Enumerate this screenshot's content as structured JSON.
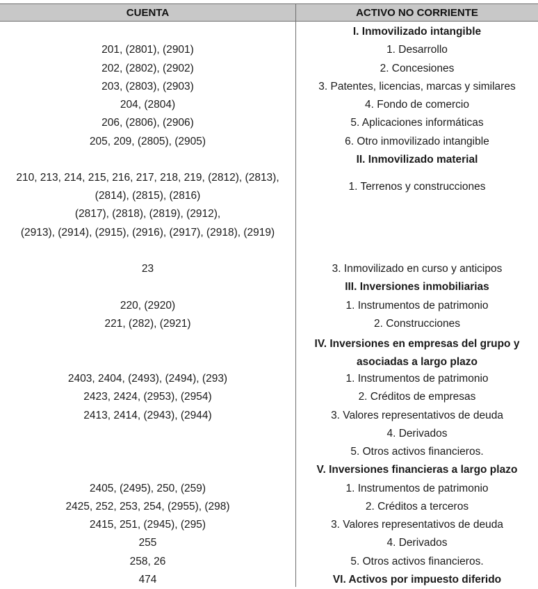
{
  "header": {
    "cuenta": "CUENTA",
    "activo": "ACTIVO NO CORRIENTE"
  },
  "rows": [
    {
      "cuenta": "",
      "activo": "I. Inmovilizado intangible"
    },
    {
      "cuenta": "201, (2801), (2901)",
      "activo": "1. Desarrollo"
    },
    {
      "cuenta": "202, (2802), (2902)",
      "activo": "2. Concesiones"
    },
    {
      "cuenta": "203, (2803), (2903)",
      "activo": "3. Patentes, licencias, marcas y similares"
    },
    {
      "cuenta": "204, (2804)",
      "activo": "4. Fondo de comercio"
    },
    {
      "cuenta": "206, (2806), (2906)",
      "activo": "5. Aplicaciones informáticas"
    },
    {
      "cuenta": "205, 209, (2805), (2905)",
      "activo": "6. Otro inmovilizado intangible"
    },
    {
      "cuenta": "",
      "activo": "II. Inmovilizado material"
    },
    {
      "cuenta": "210, 213, 214, 215, 216, 217, 218, 219, (2812), (2813), (2814), (2815), (2816)",
      "activo": "1. Terrenos y construcciones"
    },
    {
      "cuenta": "(2817), (2818), (2819), (2912),",
      "activo": ""
    },
    {
      "cuenta": "(2913), (2914), (2915), (2916), (2917), (2918), (2919)",
      "activo": ""
    },
    {
      "cuenta": "23",
      "activo": "3. Inmovilizado en curso y anticipos"
    },
    {
      "cuenta": "",
      "activo": "III. Inversiones inmobiliarias"
    },
    {
      "cuenta": "220, (2920)",
      "activo": "1. Instrumentos de patrimonio"
    },
    {
      "cuenta": "221, (282), (2921)",
      "activo": "2. Construcciones"
    },
    {
      "cuenta": "",
      "activo": "IV. Inversiones en empresas del grupo y asociadas a largo plazo"
    },
    {
      "cuenta": "2403, 2404, (2493), (2494), (293)",
      "activo": "1. Instrumentos de patrimonio"
    },
    {
      "cuenta": "2423, 2424, (2953), (2954)",
      "activo": "2. Créditos de empresas"
    },
    {
      "cuenta": "2413, 2414, (2943), (2944)",
      "activo": "3. Valores representativos de deuda"
    },
    {
      "cuenta": "",
      "activo": "4. Derivados"
    },
    {
      "cuenta": "",
      "activo": "5. Otros activos financieros."
    },
    {
      "cuenta": "",
      "activo": "V. Inversiones financieras a largo plazo"
    },
    {
      "cuenta": "2405, (2495), 250, (259)",
      "activo": "1. Instrumentos de patrimonio"
    },
    {
      "cuenta": "2425, 252, 253, 254, (2955), (298)",
      "activo": "2. Créditos a terceros"
    },
    {
      "cuenta": "2415, 251, (2945), (295)",
      "activo": "3. Valores representativos de deuda"
    },
    {
      "cuenta": "255",
      "activo": "4. Derivados"
    },
    {
      "cuenta": "258, 26",
      "activo": "5. Otros activos financieros."
    },
    {
      "cuenta": "474",
      "activo": "VI. Activos por impuesto diferido"
    }
  ]
}
